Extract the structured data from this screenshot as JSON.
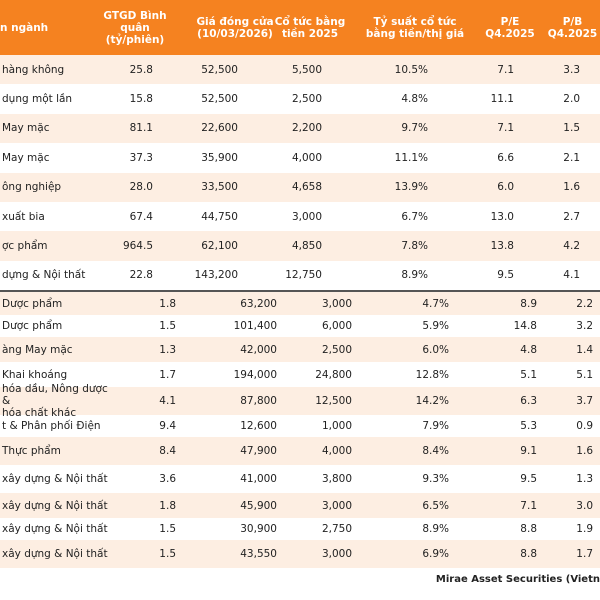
{
  "header": {
    "columns": [
      "n ngành",
      "GTGD Bình quân\n(tỷ/phiên)",
      "Giá đóng cửa\n(10/03/2026)",
      "Cổ tức bằng\ntiền 2025",
      "Tỷ suất cổ tức\nbằng tiền/thị giá",
      "P/E\nQ4.2025",
      "P/B\nQ4.2025"
    ]
  },
  "sections": [
    {
      "rows": [
        [
          "hàng không",
          "25.8",
          "52,500",
          "5,500",
          "10.5%",
          "7.1",
          "3.3"
        ],
        [
          "dụng một lần",
          "15.8",
          "52,500",
          "2,500",
          "4.8%",
          "11.1",
          "2.0"
        ],
        [
          "May mặc",
          "81.1",
          "22,600",
          "2,200",
          "9.7%",
          "7.1",
          "1.5"
        ],
        [
          "May mặc",
          "37.3",
          "35,900",
          "4,000",
          "11.1%",
          "6.6",
          "2.1"
        ],
        [
          "ông nghiệp",
          "28.0",
          "33,500",
          "4,658",
          "13.9%",
          "6.0",
          "1.6"
        ],
        [
          "xuất bia",
          "67.4",
          "44,750",
          "3,000",
          "6.7%",
          "13.0",
          "2.7"
        ],
        [
          "ợc phẩm",
          "964.5",
          "62,100",
          "4,850",
          "7.8%",
          "13.8",
          "4.2"
        ],
        [
          "dựng & Nội thất",
          "22.8",
          "143,200",
          "12,750",
          "8.9%",
          "9.5",
          "4.1"
        ]
      ]
    },
    {
      "rows": [
        [
          "Dược phẩm",
          "1.8",
          "63,200",
          "3,000",
          "4.7%",
          "8.9",
          "2.2"
        ],
        [
          "Dược phẩm",
          "1.5",
          "101,400",
          "6,000",
          "5.9%",
          "14.8",
          "3.2"
        ],
        [
          "àng May mặc",
          "1.3",
          "42,000",
          "2,500",
          "6.0%",
          "4.8",
          "1.4"
        ],
        [
          "Khai khoáng",
          "1.7",
          "194,000",
          "24,800",
          "12.8%",
          "5.1",
          "5.1"
        ],
        [
          "hóa dầu, Nông dược &\nhóa chất khác",
          "4.1",
          "87,800",
          "12,500",
          "14.2%",
          "6.3",
          "3.7"
        ],
        [
          "t & Phân phối Điện",
          "9.4",
          "12,600",
          "1,000",
          "7.9%",
          "5.3",
          "0.9"
        ],
        [
          "Thực phẩm",
          "8.4",
          "47,900",
          "4,000",
          "8.4%",
          "9.1",
          "1.6"
        ],
        [
          "xây dựng & Nội thất",
          "3.6",
          "41,000",
          "3,800",
          "9.3%",
          "9.5",
          "1.3"
        ],
        [
          "xây dựng & Nội thất",
          "1.8",
          "45,900",
          "3,000",
          "6.5%",
          "7.1",
          "3.0"
        ],
        [
          "xây dựng & Nội thất",
          "1.5",
          "30,900",
          "2,750",
          "8.9%",
          "8.8",
          "1.9"
        ],
        [
          "xây dựng & Nội thất",
          "1.5",
          "43,550",
          "3,000",
          "6.9%",
          "8.8",
          "1.7"
        ]
      ]
    }
  ],
  "footer": {
    "source": "Mirae Asset Securities (Vietn"
  }
}
